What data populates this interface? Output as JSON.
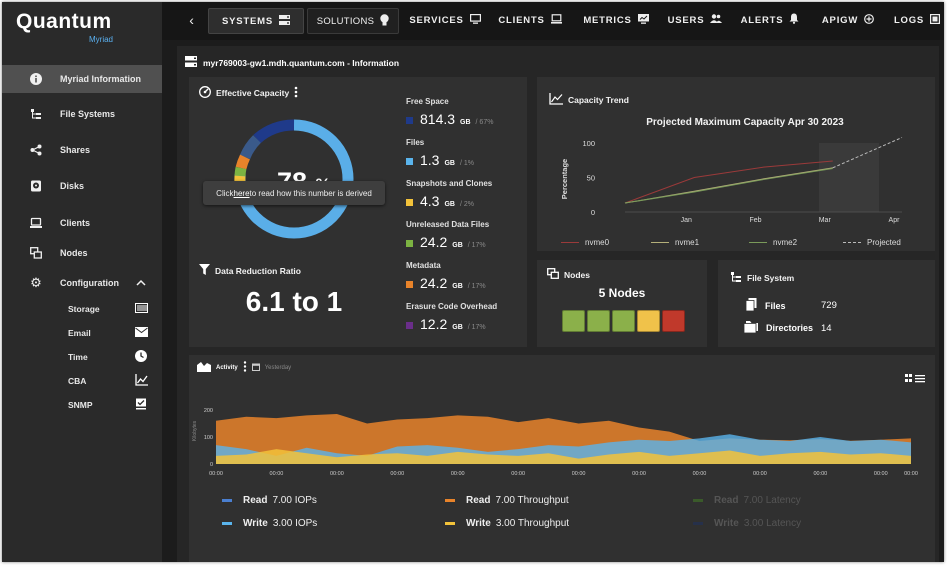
{
  "app": {
    "brand": "Quantum",
    "product": "Myriad"
  },
  "sidebar": {
    "items": [
      {
        "label": "Myriad Information",
        "icon": "info-icon"
      },
      {
        "label": "File Systems",
        "icon": "file-tree-icon"
      },
      {
        "label": "Shares",
        "icon": "share-icon"
      },
      {
        "label": "Disks",
        "icon": "disk-icon"
      },
      {
        "label": "Clients",
        "icon": "laptop-icon"
      },
      {
        "label": "Nodes",
        "icon": "nodes-icon"
      },
      {
        "label": "Configuration",
        "icon": "gear-icon"
      }
    ],
    "config_items": [
      {
        "label": "Storage",
        "icon": "storage-icon"
      },
      {
        "label": "Email",
        "icon": "mail-icon"
      },
      {
        "label": "Time",
        "icon": "clock-icon"
      },
      {
        "label": "CBA",
        "icon": "chart-icon"
      },
      {
        "label": "SNMP",
        "icon": "snmp-icon"
      }
    ]
  },
  "topnav": {
    "back": "‹",
    "items": [
      "SYSTEMS",
      "SOLUTIONS",
      "SERVICES",
      "CLIENTS",
      "METRICS",
      "USERS",
      "ALERTS",
      "APIGW",
      "LOGS"
    ]
  },
  "host": {
    "title": "myr769003-gw1.mdh.quantum.com - Information"
  },
  "capacity": {
    "title": "Effective Capacity",
    "percent_num": "78",
    "percent_sign": "%",
    "tooltip_pre": "Click ",
    "tooltip_link": "here",
    "tooltip_post": " to read how this number is derived",
    "metrics": [
      {
        "label": "Free Space",
        "value": "814.3",
        "unit": "GB",
        "pct": "/ 67%",
        "color": "#1f3a8a"
      },
      {
        "label": "Files",
        "value": "1.3",
        "unit": "GB",
        "pct": "/ 1%",
        "color": "#5ab4ec"
      },
      {
        "label": "Snapshots and Clones",
        "value": "4.3",
        "unit": "GB",
        "pct": "/ 2%",
        "color": "#f2c23a"
      },
      {
        "label": "Unreleased Data Files",
        "value": "24.2",
        "unit": "GB",
        "pct": "/ 17%",
        "color": "#7cb342"
      },
      {
        "label": "Metadata",
        "value": "24.2",
        "unit": "GB",
        "pct": "/ 17%",
        "color": "#e8832a"
      },
      {
        "label": "Erasure Code Overhead",
        "value": "12.2",
        "unit": "GB",
        "pct": "/ 17%",
        "color": "#6a2e8a"
      }
    ]
  },
  "reduction": {
    "title": "Data Reduction Ratio",
    "value": "6.1 to 1"
  },
  "trend": {
    "title": "Capacity Trend"
  },
  "nodes": {
    "title": "Nodes",
    "count_label": "5 Nodes",
    "colors": [
      "#8bb04a",
      "#8bb04a",
      "#8bb04a",
      "#f0c24a",
      "#c0392b"
    ]
  },
  "filesystem": {
    "title": "File System",
    "files_label": "Files",
    "files_value": "729",
    "dirs_label": "Directories",
    "dirs_value": "14"
  },
  "activity": {
    "title": "Activity",
    "time_label": "Yesterday",
    "legend": [
      {
        "label": "Read",
        "value": "7.00 IOPs",
        "color": "#4a7fd0",
        "dim": false
      },
      {
        "label": "Write",
        "value": "3.00 IOPs",
        "color": "#5ab4ec",
        "dim": false
      },
      {
        "label": "Read",
        "value": "7.00 Throughput",
        "color": "#e8832a",
        "dim": false
      },
      {
        "label": "Write",
        "value": "3.00 Throughput",
        "color": "#f2c23a",
        "dim": false
      },
      {
        "label": "Read",
        "value": "7.00 Latency",
        "color": "#3a5a2a",
        "dim": true
      },
      {
        "label": "Write",
        "value": "3.00 Latency",
        "color": "#26304a",
        "dim": true
      }
    ]
  },
  "chart_data": [
    {
      "type": "line",
      "title": "Projected Maximum Capacity Apr 30 2023",
      "xlabel": "",
      "ylabel": "Percentage",
      "categories": [
        "Jan",
        "Feb",
        "Mar",
        "Apr"
      ],
      "ylim": [
        0,
        100
      ],
      "yticks": [
        0,
        50,
        100
      ],
      "series": [
        {
          "name": "nvme0",
          "color": "#9b3a3a",
          "x": [
            0,
            1,
            2,
            3
          ],
          "values": [
            13,
            50,
            65,
            74
          ]
        },
        {
          "name": "nvme1",
          "color": "#b5b07a",
          "x": [
            0,
            1,
            2,
            3
          ],
          "values": [
            13,
            30,
            48,
            64
          ]
        },
        {
          "name": "nvme2",
          "color": "#7a9a5a",
          "x": [
            0,
            1,
            2,
            3
          ],
          "values": [
            13,
            29,
            47,
            63
          ]
        },
        {
          "name": "Projected",
          "color": "#bbbbbb",
          "x": [
            3,
            4
          ],
          "values": [
            64,
            108
          ],
          "dashed": true
        }
      ]
    },
    {
      "type": "area",
      "title": "Activity",
      "ylabel": "Kilobytes",
      "yticks": [
        0,
        100,
        200
      ],
      "ylim": [
        0,
        200
      ],
      "categories": [
        "00:00",
        "00:00",
        "00:00",
        "00:00",
        "00:00",
        "00:00",
        "00:00",
        "00:00",
        "00:00",
        "00:00",
        "00:00",
        "00:00",
        "00:00",
        "00:00",
        "00:00",
        "00:00",
        "00:00",
        "00:00",
        "00:00",
        "00:00",
        "00:00",
        "00:00",
        "00:00",
        "00:00"
      ],
      "series": [
        {
          "name": "Read Throughput",
          "color": "#e8832a",
          "values": [
            160,
            175,
            170,
            180,
            185,
            150,
            165,
            170,
            180,
            175,
            155,
            170,
            150,
            160,
            135,
            120,
            85,
            95,
            90,
            88,
            92,
            86,
            90,
            95
          ]
        },
        {
          "name": "Write IOPs",
          "color": "#5ab4ec",
          "values": [
            70,
            55,
            30,
            60,
            40,
            30,
            65,
            70,
            60,
            45,
            55,
            70,
            65,
            80,
            90,
            85,
            95,
            110,
            90,
            85,
            100,
            85,
            90,
            80
          ]
        },
        {
          "name": "Write Throughput",
          "color": "#f2c23a",
          "values": [
            30,
            35,
            55,
            40,
            25,
            35,
            40,
            30,
            45,
            35,
            30,
            40,
            20,
            35,
            45,
            30,
            40,
            50,
            30,
            40,
            45,
            35,
            40,
            30
          ]
        }
      ]
    }
  ]
}
